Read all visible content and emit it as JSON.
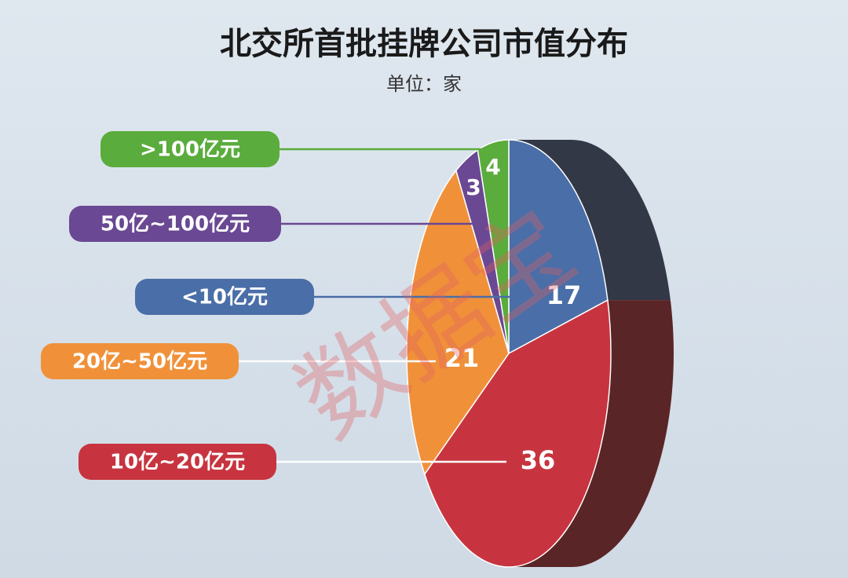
{
  "chart_data": {
    "type": "pie",
    "title": "北交所首批挂牌公司市值分布",
    "subtitle": "单位：家",
    "watermark": "数据宝",
    "categories": [
      "<10亿元",
      "10亿~20亿元",
      "20亿~50亿元",
      "50亿~100亿元",
      ">100亿元"
    ],
    "values": [
      17,
      36,
      21,
      3,
      4
    ],
    "colors": [
      "#4a6ea8",
      "#c7343f",
      "#f0913a",
      "#6a4893",
      "#5aac3c"
    ]
  }
}
